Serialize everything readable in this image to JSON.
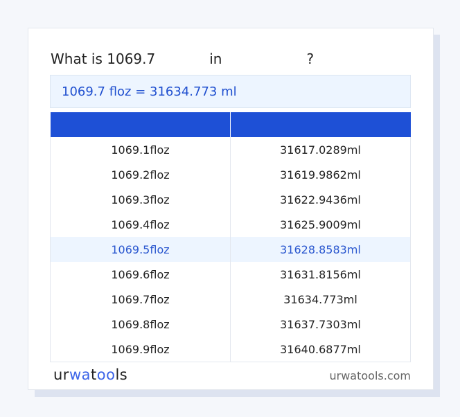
{
  "title": {
    "prefix": "What is 1069.7",
    "mid": "in",
    "suffix": "?"
  },
  "result": "1069.7 floz = 31634.773 ml",
  "table": {
    "headers": [
      "",
      ""
    ],
    "highlight_index": 4,
    "rows": [
      [
        "1069.1floz",
        "31617.0289ml"
      ],
      [
        "1069.2floz",
        "31619.9862ml"
      ],
      [
        "1069.3floz",
        "31622.9436ml"
      ],
      [
        "1069.4floz",
        "31625.9009ml"
      ],
      [
        "1069.5floz",
        "31628.8583ml"
      ],
      [
        "1069.6floz",
        "31631.8156ml"
      ],
      [
        "1069.7floz",
        "31634.773ml"
      ],
      [
        "1069.8floz",
        "31637.7303ml"
      ],
      [
        "1069.9floz",
        "31640.6877ml"
      ]
    ]
  },
  "footer": {
    "logo": "urwatools",
    "logo_parts": [
      "ur",
      "wa",
      "t",
      "oo",
      "ls"
    ],
    "site": "urwatools.com"
  },
  "colors": {
    "accent": "#1e50d6",
    "highlight_bg": "#edf5ff"
  }
}
